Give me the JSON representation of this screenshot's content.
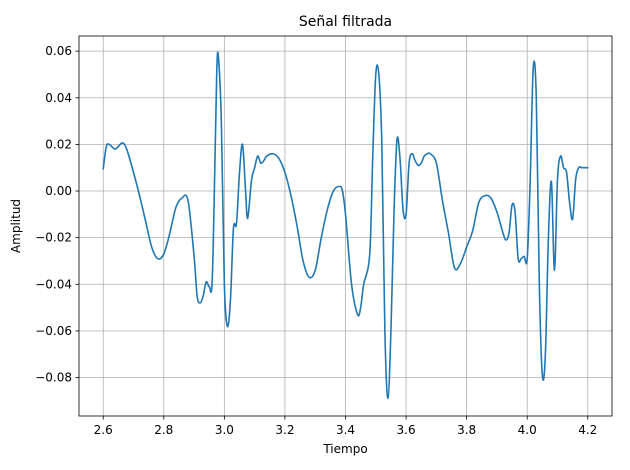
{
  "chart_data": {
    "type": "line",
    "title": "Señal filtrada",
    "xlabel": "Tiempo",
    "ylabel": "Amplitud",
    "xlim": [
      2.52,
      4.28
    ],
    "ylim": [
      -0.0965,
      0.0665
    ],
    "xticks": [
      2.6,
      2.8,
      3.0,
      3.2,
      3.4,
      3.6,
      3.8,
      4.0,
      4.2
    ],
    "xtick_labels": [
      "2.6",
      "2.8",
      "3.0",
      "3.2",
      "3.4",
      "3.6",
      "3.8",
      "4.0",
      "4.2"
    ],
    "yticks": [
      0.06,
      0.04,
      0.02,
      0.0,
      -0.02,
      -0.04,
      -0.06,
      -0.08
    ],
    "ytick_labels": [
      "0.06",
      "0.04",
      "0.02",
      "0.00",
      "−0.02",
      "−0.04",
      "−0.06",
      "−0.08"
    ],
    "grid": true,
    "color": "#1f77b4",
    "series": [
      {
        "x": [
          2.6,
          2.61,
          2.62,
          2.64,
          2.66,
          2.67,
          2.68,
          2.7,
          2.72,
          2.74,
          2.76,
          2.78,
          2.8,
          2.82,
          2.84,
          2.86,
          2.88,
          2.9,
          2.91,
          2.92,
          2.93,
          2.94,
          2.95,
          2.96,
          2.97,
          2.975,
          2.98,
          2.99,
          3.0,
          3.01,
          3.02,
          3.03,
          3.04,
          3.05,
          3.06,
          3.07,
          3.075,
          3.08,
          3.09,
          3.1,
          3.11,
          3.12,
          3.13,
          3.14,
          3.16,
          3.18,
          3.2,
          3.22,
          3.24,
          3.26,
          3.28,
          3.3,
          3.32,
          3.34,
          3.36,
          3.38,
          3.39,
          3.4,
          3.42,
          3.44,
          3.45,
          3.46,
          3.48,
          3.49,
          3.5,
          3.51,
          3.52,
          3.53,
          3.54,
          3.55,
          3.56,
          3.57,
          3.58,
          3.59,
          3.6,
          3.61,
          3.62,
          3.63,
          3.64,
          3.65,
          3.66,
          3.67,
          3.68,
          3.7,
          3.72,
          3.74,
          3.76,
          3.78,
          3.8,
          3.82,
          3.84,
          3.86,
          3.88,
          3.9,
          3.92,
          3.93,
          3.94,
          3.95,
          3.96,
          3.97,
          3.98,
          3.99,
          4.0,
          4.01,
          4.02,
          4.03,
          4.04,
          4.05,
          4.06,
          4.07,
          4.08,
          4.09,
          4.1,
          4.11,
          4.12,
          4.13,
          4.14,
          4.15,
          4.16,
          4.17,
          4.18,
          4.19,
          4.2
        ],
        "y": [
          0.0095,
          0.019,
          0.02,
          0.018,
          0.0205,
          0.02,
          0.017,
          0.008,
          -0.002,
          -0.013,
          -0.024,
          -0.029,
          -0.027,
          -0.018,
          -0.007,
          -0.003,
          -0.004,
          -0.028,
          -0.045,
          -0.048,
          -0.045,
          -0.039,
          -0.041,
          -0.038,
          0.02,
          0.052,
          0.058,
          0.03,
          -0.04,
          -0.058,
          -0.047,
          -0.016,
          -0.014,
          0.008,
          0.02,
          0.0,
          -0.011,
          -0.009,
          0.005,
          0.01,
          0.015,
          0.012,
          0.013,
          0.015,
          0.016,
          0.014,
          0.008,
          -0.002,
          -0.015,
          -0.03,
          -0.037,
          -0.034,
          -0.02,
          -0.008,
          0.0,
          0.002,
          0.0,
          -0.01,
          -0.04,
          -0.053,
          -0.05,
          -0.04,
          -0.027,
          0.015,
          0.05,
          0.05,
          0.02,
          -0.06,
          -0.089,
          -0.06,
          -0.01,
          0.022,
          0.014,
          -0.008,
          -0.01,
          0.012,
          0.016,
          0.013,
          0.011,
          0.012,
          0.015,
          0.016,
          0.016,
          0.012,
          -0.004,
          -0.018,
          -0.033,
          -0.031,
          -0.024,
          -0.017,
          -0.005,
          -0.002,
          -0.003,
          -0.009,
          -0.018,
          -0.021,
          -0.018,
          -0.006,
          -0.009,
          -0.029,
          -0.029,
          -0.028,
          -0.029,
          0.005,
          0.053,
          0.04,
          -0.04,
          -0.079,
          -0.07,
          -0.02,
          0.004,
          -0.034,
          0.005,
          0.015,
          0.01,
          0.008,
          -0.005,
          -0.012,
          0.005,
          0.01,
          0.01,
          0.01,
          0.01
        ]
      }
    ]
  }
}
